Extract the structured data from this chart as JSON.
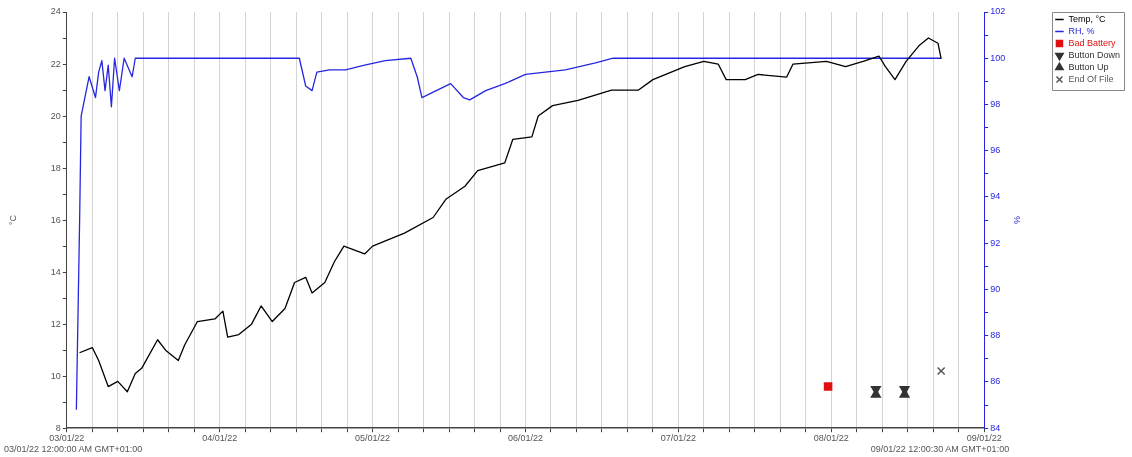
{
  "chart_data": {
    "type": "line",
    "ylabel": "°C",
    "y2label": "%",
    "annotations": [
      "03/01/22 12:00:00 AM GMT+01:00",
      "09/01/22 12:00:30 AM GMT+01:00"
    ],
    "xlim": [
      "--01-03",
      "--01-09"
    ],
    "xticks": [
      {
        "value": "--01-03",
        "label": "03/01/22"
      },
      {
        "value": "--01-03T04:00",
        "label": null
      },
      {
        "value": "--01-03T08:00",
        "label": null
      },
      {
        "value": "--01-03T12:00",
        "label": null
      },
      {
        "value": "--01-03T16:00",
        "label": null
      },
      {
        "value": "--01-03T20:00",
        "label": null
      },
      {
        "value": "--01-04",
        "label": "04/01/22"
      },
      {
        "value": "--01-04T04:00",
        "label": null
      },
      {
        "value": "--01-04T08:00",
        "label": null
      },
      {
        "value": "--01-04T12:00",
        "label": null
      },
      {
        "value": "--01-04T16:00",
        "label": null
      },
      {
        "value": "--01-04T20:00",
        "label": null
      },
      {
        "value": "--01-05",
        "label": "05/01/22"
      },
      {
        "value": "--01-05T04:00",
        "label": null
      },
      {
        "value": "--01-05T08:00",
        "label": null
      },
      {
        "value": "--01-05T12:00",
        "label": null
      },
      {
        "value": "--01-05T16:00",
        "label": null
      },
      {
        "value": "--01-05T20:00",
        "label": null
      },
      {
        "value": "--01-06",
        "label": "06/01/22"
      },
      {
        "value": "--01-06T04:00",
        "label": null
      },
      {
        "value": "--01-06T08:00",
        "label": null
      },
      {
        "value": "--01-06T12:00",
        "label": null
      },
      {
        "value": "--01-06T16:00",
        "label": null
      },
      {
        "value": "--01-06T20:00",
        "label": null
      },
      {
        "value": "--01-07",
        "label": "07/01/22"
      },
      {
        "value": "--01-07T04:00",
        "label": null
      },
      {
        "value": "--01-07T08:00",
        "label": null
      },
      {
        "value": "--01-07T12:00",
        "label": null
      },
      {
        "value": "--01-07T16:00",
        "label": null
      },
      {
        "value": "--01-07T20:00",
        "label": null
      },
      {
        "value": "--01-08",
        "label": "08/01/22"
      },
      {
        "value": "--01-08T04:00",
        "label": null
      },
      {
        "value": "--01-08T08:00",
        "label": null
      },
      {
        "value": "--01-08T12:00",
        "label": null
      },
      {
        "value": "--01-08T16:00",
        "label": null
      },
      {
        "value": "--01-08T20:00",
        "label": null
      },
      {
        "value": "--01-09",
        "label": "09/01/22"
      }
    ],
    "ylim": [
      8,
      24
    ],
    "yticks": [
      8,
      {
        "value": 9,
        "label": null
      },
      10,
      {
        "value": 11,
        "label": null
      },
      12,
      {
        "value": 13,
        "label": null
      },
      14,
      {
        "value": 15,
        "label": null
      },
      16,
      {
        "value": 17,
        "label": null
      },
      18,
      {
        "value": 19,
        "label": null
      },
      20,
      {
        "value": 21,
        "label": null
      },
      22,
      {
        "value": 23,
        "label": null
      },
      24
    ],
    "y2lim": [
      84,
      102
    ],
    "y2ticks": [
      84,
      {
        "value": 85,
        "label": null
      },
      86,
      {
        "value": 87,
        "label": null
      },
      88,
      {
        "value": 89,
        "label": null
      },
      90,
      {
        "value": 91,
        "label": null
      },
      92,
      {
        "value": 93,
        "label": null
      },
      94,
      {
        "value": 95,
        "label": null
      },
      96,
      {
        "value": 97,
        "label": null
      },
      98,
      {
        "value": 99,
        "label": null
      },
      100,
      {
        "value": 101,
        "label": null
      },
      102
    ],
    "grid": "x",
    "legend": "top right",
    "line_style": "solid",
    "series": [
      {
        "name": "Temp, °C",
        "color": "#000000",
        "marker": "none",
        "x": [
          "--01-03T02:00",
          "--01-03T04:00",
          "--01-03T05:00",
          "--01-03T06:30",
          "--01-03T08:00",
          "--01-03T09:30",
          "--01-03T10:45",
          "--01-03T11:45",
          "--01-03T14:15",
          "--01-03T15:30",
          "--01-03T17:30",
          "--01-03T18:30",
          "--01-03T20:30",
          "--01-03T23:15",
          "--01-04T00:30",
          "--01-04T01:15",
          "--01-04T03:00",
          "--01-04T05:00",
          "--01-04T06:30",
          "--01-04T08:15",
          "--01-04T10:15",
          "--01-04T11:45",
          "--01-04T13:30",
          "--01-04T14:30",
          "--01-04T16:30",
          "--01-04T18:00",
          "--01-04T19:30",
          "--01-04T22:45",
          "--01-05T00:00",
          "--01-05T05:00",
          "--01-05T09:30",
          "--01-05T11:30",
          "--01-05T14:30",
          "--01-05T16:30",
          "--01-05T20:45",
          "--01-05T22:00",
          "--01-06T01:00",
          "--01-06T02:00",
          "--01-06T04:15",
          "--01-06T08:15",
          "--01-06T13:30",
          "--01-06T17:45",
          "--01-06T20:00",
          "--01-07T01:00",
          "--01-07T04:00",
          "--01-07T06:15",
          "--01-07T07:30",
          "--01-07T10:30",
          "--01-07T12:30",
          "--01-07T17:00",
          "--01-07T18:00",
          "--01-07T23:15",
          "--01-08T02:15",
          "--01-08T05:00",
          "--01-08T07:30",
          "--01-08T08:30",
          "--01-08T10:00",
          "--01-08T11:45",
          "--01-08T13:45",
          "--01-08T15:15",
          "--01-08T16:45",
          "--01-08T17:15"
        ],
        "values": [
          10.9,
          11.1,
          10.6,
          9.6,
          9.8,
          9.4,
          10.1,
          10.3,
          11.4,
          11.0,
          10.6,
          11.2,
          12.1,
          12.2,
          12.5,
          11.5,
          11.6,
          12.0,
          12.7,
          12.1,
          12.6,
          13.6,
          13.8,
          13.2,
          13.6,
          14.4,
          15.0,
          14.7,
          15.0,
          15.5,
          16.1,
          16.8,
          17.3,
          17.9,
          18.2,
          19.1,
          19.2,
          20.0,
          20.4,
          20.6,
          21.0,
          21.0,
          21.4,
          21.9,
          22.1,
          22.0,
          21.4,
          21.4,
          21.6,
          21.5,
          22.0,
          22.1,
          21.9,
          22.1,
          22.3,
          21.9,
          21.4,
          22.1,
          22.7,
          23.0,
          22.8,
          22.2
        ]
      },
      {
        "name": "RH, %",
        "axis": "y2",
        "color": "#2626e0",
        "marker": "none",
        "x": [
          "--01-03T01:30",
          "--01-03T02:00",
          "--01-03T02:15",
          "--01-03T03:30",
          "--01-03T04:30",
          "--01-03T05:00",
          "--01-03T05:30",
          "--01-03T06:00",
          "--01-03T06:30",
          "--01-03T07:00",
          "--01-03T07:30",
          "--01-03T08:15",
          "--01-03T09:00",
          "--01-03T10:15",
          "--01-03T10:45",
          "--01-04T12:30",
          "--01-04T13:30",
          "--01-04T14:30",
          "--01-04T15:15",
          "--01-04T17:15",
          "--01-04T19:45",
          "--01-04T22:45",
          "--01-05T02:00",
          "--01-05T06:00",
          "--01-05T07:00",
          "--01-05T07:45",
          "--01-05T10:00",
          "--01-05T12:15",
          "--01-05T14:15",
          "--01-05T15:15",
          "--01-05T17:45",
          "--01-05T20:45",
          "--01-06T00:00",
          "--01-06T06:15",
          "--01-06T11:00",
          "--01-06T13:45",
          "--01-08T17:15"
        ],
        "values": [
          84.8,
          92.8,
          97.5,
          99.2,
          98.3,
          99.4,
          99.9,
          98.6,
          99.7,
          97.9,
          100,
          98.6,
          100,
          99.2,
          100,
          100,
          98.8,
          98.6,
          99.4,
          99.5,
          99.5,
          99.7,
          99.9,
          100,
          99.2,
          98.3,
          98.6,
          98.9,
          98.3,
          98.2,
          98.6,
          98.9,
          99.3,
          99.5,
          99.8,
          100,
          100
        ]
      },
      {
        "name": "Bad Battery",
        "type": "scatter",
        "color": "#e01010",
        "marker": "square",
        "x": [
          "--01-07T23:30"
        ],
        "values": [
          9.6
        ]
      },
      {
        "name": "Button Down",
        "type": "scatter",
        "color": "#333333",
        "marker": "triangle-down",
        "x": [
          "--01-08T07:00",
          "--01-08T11:30"
        ],
        "values": [
          9.5,
          9.5
        ]
      },
      {
        "name": "Button Up",
        "type": "scatter",
        "color": "#333333",
        "marker": "triangle",
        "x": [
          "--01-08T07:00",
          "--01-08T11:30"
        ],
        "values": [
          9.3,
          9.3
        ]
      },
      {
        "name": "End Of File",
        "type": "scatter",
        "color": "#555555",
        "marker": "cross",
        "x": [
          "--01-08T17:15"
        ],
        "values": [
          10.2
        ]
      }
    ]
  }
}
